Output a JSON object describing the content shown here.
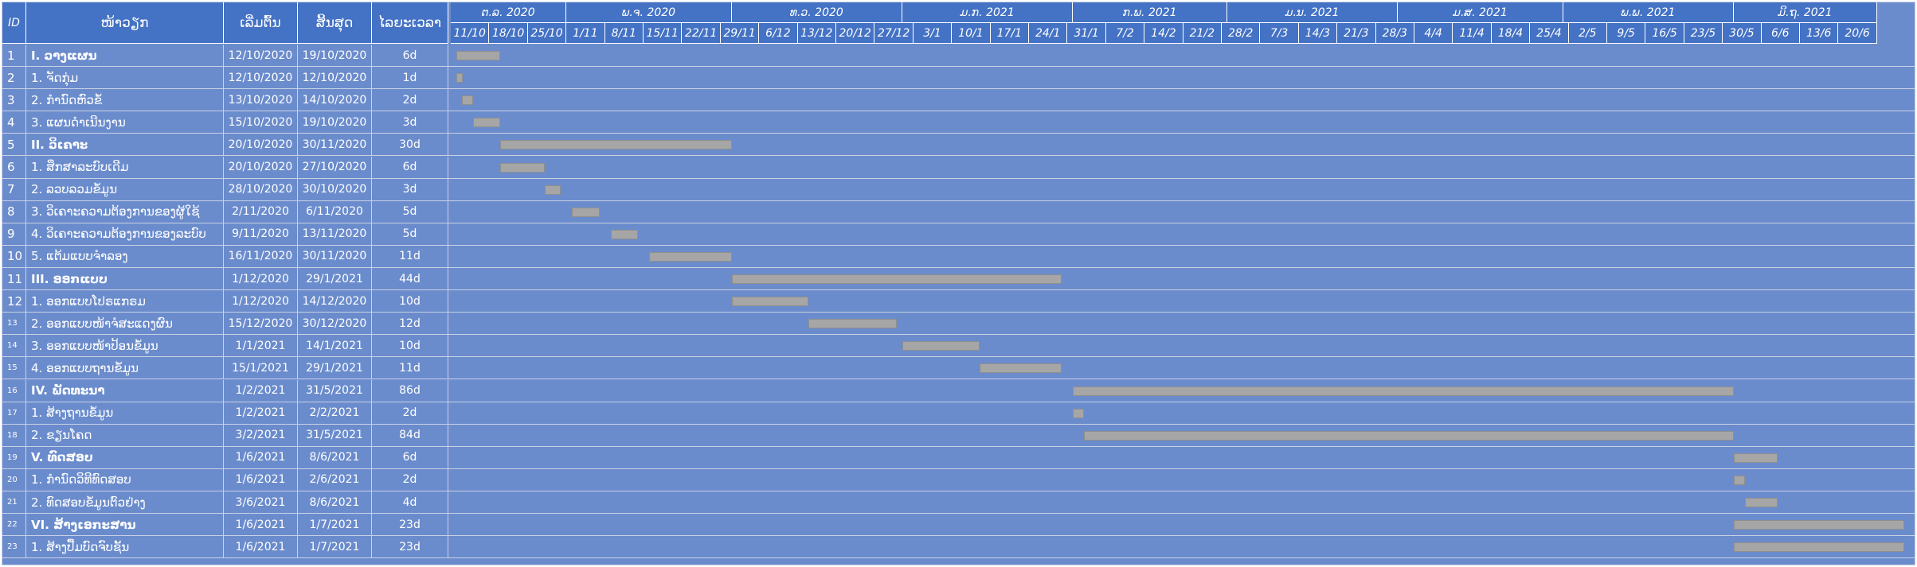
{
  "header": {
    "id": "ID",
    "task": "ໜ້າວຽກ",
    "start": "ເລີ່ມຕົ້ນ",
    "end": "ສິ້ນສຸດ",
    "duration": "ໄລຍະເວລາ"
  },
  "months": [
    "ຕ.ລ. 2020",
    "ພ.ຈ. 2020",
    "ທ.ວ. 2020",
    "ມ.ກ. 2021",
    "ກ.ພ. 2021",
    "ມ.ນ. 2021",
    "ມ.ສ. 2021",
    "ພ.ພ. 2021",
    "ມິ.ຖ. 2021"
  ],
  "weeks": [
    "11/10",
    "18/10",
    "25/10",
    "1/11",
    "8/11",
    "15/11",
    "22/11",
    "29/11",
    "6/12",
    "13/12",
    "20/12",
    "27/12",
    "3/1",
    "10/1",
    "17/1",
    "24/1",
    "31/1",
    "7/2",
    "14/2",
    "21/2",
    "28/2",
    "7/3",
    "14/3",
    "21/3",
    "28/3",
    "4/4",
    "11/4",
    "18/4",
    "25/4",
    "2/5",
    "9/5",
    "16/5",
    "23/5",
    "30/5",
    "6/6",
    "13/6",
    "20/6"
  ],
  "chart_data": {
    "type": "gantt",
    "timeline_start": "2020-10-11",
    "timeline_end": "2021-06-27",
    "tasks": [
      {
        "id": "1",
        "name": "I. ວາງແຜນ",
        "start": "12/10/2020",
        "end": "19/10/2020",
        "duration": "6d",
        "summary": true
      },
      {
        "id": "2",
        "name": "1. ຈັດກຸ່ມ",
        "start": "12/10/2020",
        "end": "12/10/2020",
        "duration": "1d",
        "summary": false
      },
      {
        "id": "3",
        "name": "2. ກຳນົດຫົວຂໍ້",
        "start": "13/10/2020",
        "end": "14/10/2020",
        "duration": "2d",
        "summary": false
      },
      {
        "id": "4",
        "name": "3. ແຜນດຳເນີນງານ",
        "start": "15/10/2020",
        "end": "19/10/2020",
        "duration": "3d",
        "summary": false
      },
      {
        "id": "5",
        "name": "II. ວິເຄາະ",
        "start": "20/10/2020",
        "end": "30/11/2020",
        "duration": "30d",
        "summary": true
      },
      {
        "id": "6",
        "name": "1. ສຶກສາລະບົບເດີມ",
        "start": "20/10/2020",
        "end": "27/10/2020",
        "duration": "6d",
        "summary": false
      },
      {
        "id": "7",
        "name": "2. ລວບລວມຂໍ້ມູນ",
        "start": "28/10/2020",
        "end": "30/10/2020",
        "duration": "3d",
        "summary": false
      },
      {
        "id": "8",
        "name": "3. ວິເຄາະຄວາມຕ້ອງການຂອງຜູ້ໃຊ້",
        "start": "2/11/2020",
        "end": "6/11/2020",
        "duration": "5d",
        "summary": false
      },
      {
        "id": "9",
        "name": "4. ວິເຄາະຄວາມຕ້ອງການຂອງລະບົບ",
        "start": "9/11/2020",
        "end": "13/11/2020",
        "duration": "5d",
        "summary": false
      },
      {
        "id": "10",
        "name": "5. ແຕ້ມແບບຈຳລອງ",
        "start": "16/11/2020",
        "end": "30/11/2020",
        "duration": "11d",
        "summary": false
      },
      {
        "id": "11",
        "name": "III. ອອກແບບ",
        "start": "1/12/2020",
        "end": "29/1/2021",
        "duration": "44d",
        "summary": true
      },
      {
        "id": "12",
        "name": "1. ອອກແບບໂປຣແກຣມ",
        "start": "1/12/2020",
        "end": "14/12/2020",
        "duration": "10d",
        "summary": false
      },
      {
        "id": "13",
        "name": "2. ອອກແບບໜ້າຈໍສະແດງຜົນ",
        "start": "15/12/2020",
        "end": "30/12/2020",
        "duration": "12d",
        "summary": false
      },
      {
        "id": "14",
        "name": "3. ອອກແບບໜ້າປ້ອນຂໍ້ມູນ",
        "start": "1/1/2021",
        "end": "14/1/2021",
        "duration": "10d",
        "summary": false
      },
      {
        "id": "15",
        "name": "4. ອອກແບບຖານຂໍ້ມູນ",
        "start": "15/1/2021",
        "end": "29/1/2021",
        "duration": "11d",
        "summary": false
      },
      {
        "id": "16",
        "name": "IV. ພັດທະນາ",
        "start": "1/2/2021",
        "end": "31/5/2021",
        "duration": "86d",
        "summary": true
      },
      {
        "id": "17",
        "name": "1. ສ້າງຖານຂໍ້ມູນ",
        "start": "1/2/2021",
        "end": "2/2/2021",
        "duration": "2d",
        "summary": false
      },
      {
        "id": "18",
        "name": "2. ຂຽນໂຄດ",
        "start": "3/2/2021",
        "end": "31/5/2021",
        "duration": "84d",
        "summary": false
      },
      {
        "id": "19",
        "name": "V. ທົດສອບ",
        "start": "1/6/2021",
        "end": "8/6/2021",
        "duration": "6d",
        "summary": true
      },
      {
        "id": "20",
        "name": "1. ກຳນົດວິທີທົດສອບ",
        "start": "1/6/2021",
        "end": "2/6/2021",
        "duration": "2d",
        "summary": false
      },
      {
        "id": "21",
        "name": "2. ທົດສອບຂໍ້ມູນຕົວຢ່າງ",
        "start": "3/6/2021",
        "end": "8/6/2021",
        "duration": "4d",
        "summary": false
      },
      {
        "id": "22",
        "name": "VI. ສ້າງເອກະສານ",
        "start": "1/6/2021",
        "end": "1/7/2021",
        "duration": "23d",
        "summary": true
      },
      {
        "id": "23",
        "name": "1. ສ້າງປື້ມບົດຈົບຊັ້ນ",
        "start": "1/6/2021",
        "end": "1/7/2021",
        "duration": "23d",
        "summary": false
      }
    ]
  }
}
